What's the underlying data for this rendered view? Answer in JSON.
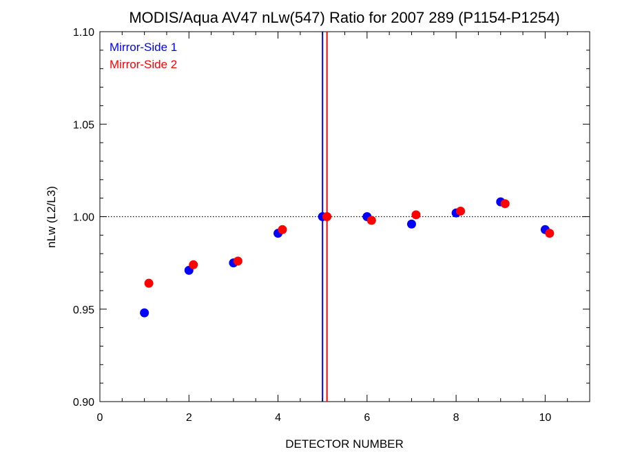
{
  "chart_data": {
    "type": "scatter",
    "title": "MODIS/Aqua AV47 nLw(547) Ratio for 2007 289 (P1154-P1254)",
    "xlabel": "DETECTOR NUMBER",
    "ylabel": "nLw (L2/L3)",
    "xlim": [
      0,
      11
    ],
    "ylim": [
      0.9,
      1.1
    ],
    "x_ticks": [
      0,
      2,
      4,
      6,
      8,
      10
    ],
    "x_tick_labels": [
      "0",
      "2",
      "4",
      "6",
      "8",
      "10"
    ],
    "y_ticks": [
      0.9,
      0.95,
      1.0,
      1.05,
      1.1
    ],
    "y_tick_labels": [
      "0.90",
      "0.95",
      "1.00",
      "1.05",
      "1.10"
    ],
    "grid": false,
    "legend_position": "top-left",
    "reference_line": {
      "y": 1.0,
      "style": "dotted",
      "color": "#000000"
    },
    "series": [
      {
        "name": "Mirror-Side 1",
        "color": "#0000ff",
        "x": [
          1,
          2,
          3,
          4,
          5,
          6,
          7,
          8,
          9,
          10
        ],
        "y": [
          0.948,
          0.971,
          0.975,
          0.991,
          1.0,
          1.0,
          0.996,
          1.002,
          1.008,
          0.993
        ],
        "vline_x": 5.0
      },
      {
        "name": "Mirror-Side 2",
        "color": "#ff0000",
        "x": [
          1.1,
          2.1,
          3.1,
          4.1,
          5.1,
          6.1,
          7.1,
          8.1,
          9.1,
          10.1
        ],
        "y": [
          0.964,
          0.974,
          0.976,
          0.993,
          1.0,
          0.998,
          1.001,
          1.003,
          1.007,
          0.991
        ],
        "vline_x": 5.1
      }
    ]
  }
}
